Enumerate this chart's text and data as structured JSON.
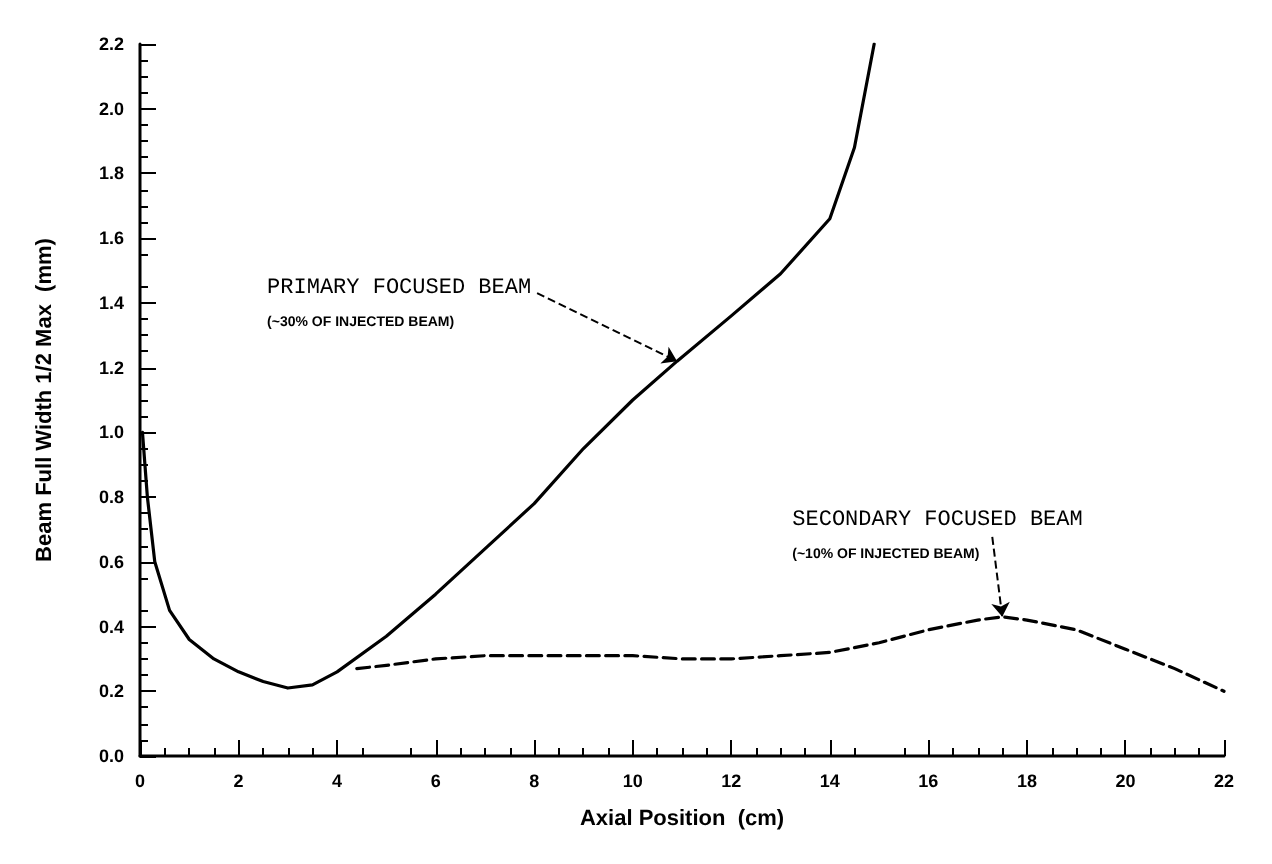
{
  "chart_data": {
    "type": "line",
    "xlabel": "Axial Position  (cm)",
    "ylabel": "Beam Full Width 1/2 Max  (mm)",
    "xlim": [
      0,
      22
    ],
    "xticks": [
      0,
      2,
      4,
      6,
      8,
      10,
      12,
      14,
      16,
      18,
      20,
      22
    ],
    "ylim": [
      0,
      2.2
    ],
    "yticks": [
      {
        "value": 0,
        "label": "0.0"
      },
      0.2,
      0.4,
      0.6,
      0.8,
      {
        "value": 1,
        "label": "1.0"
      },
      1.2,
      1.4,
      1.6,
      1.8,
      {
        "value": 2,
        "label": "2.0"
      },
      2.2
    ],
    "grid": false,
    "marker": "none",
    "series": [
      {
        "color": "#000000",
        "line_style": "solid",
        "x": [
          0.05,
          0.15,
          0.3,
          0.6,
          1,
          1.5,
          2,
          2.5,
          3,
          3.5,
          4,
          5,
          6,
          7,
          8,
          9,
          10,
          10.9,
          12,
          13,
          14,
          14.5,
          14.9
        ],
        "values": [
          1.0,
          0.8,
          0.6,
          0.45,
          0.36,
          0.3,
          0.26,
          0.23,
          0.21,
          0.22,
          0.26,
          0.37,
          0.5,
          0.64,
          0.78,
          0.95,
          1.1,
          1.22,
          1.36,
          1.49,
          1.66,
          1.88,
          2.2
        ]
      },
      {
        "color": "#000000",
        "line_style": "dashed",
        "x": [
          4.4,
          5,
          6,
          7,
          8,
          9,
          10,
          11,
          12,
          13,
          14,
          15,
          16,
          17,
          17.5,
          18,
          19,
          20,
          21,
          22
        ],
        "values": [
          0.27,
          0.28,
          0.3,
          0.31,
          0.31,
          0.31,
          0.31,
          0.3,
          0.3,
          0.31,
          0.32,
          0.35,
          0.39,
          0.42,
          0.43,
          0.42,
          0.39,
          0.33,
          0.27,
          0.2
        ]
      }
    ],
    "annotations": [
      {
        "text": "PRIMARY FOCUSED BEAM",
        "x": 10.9,
        "y": 1.22
      },
      "(~30% OF INJECTED BEAM)",
      {
        "text": "SECONDARY FOCUSED BEAM",
        "x": 17.5,
        "y": 0.43
      },
      "(~10% OF INJECTED BEAM)"
    ]
  }
}
